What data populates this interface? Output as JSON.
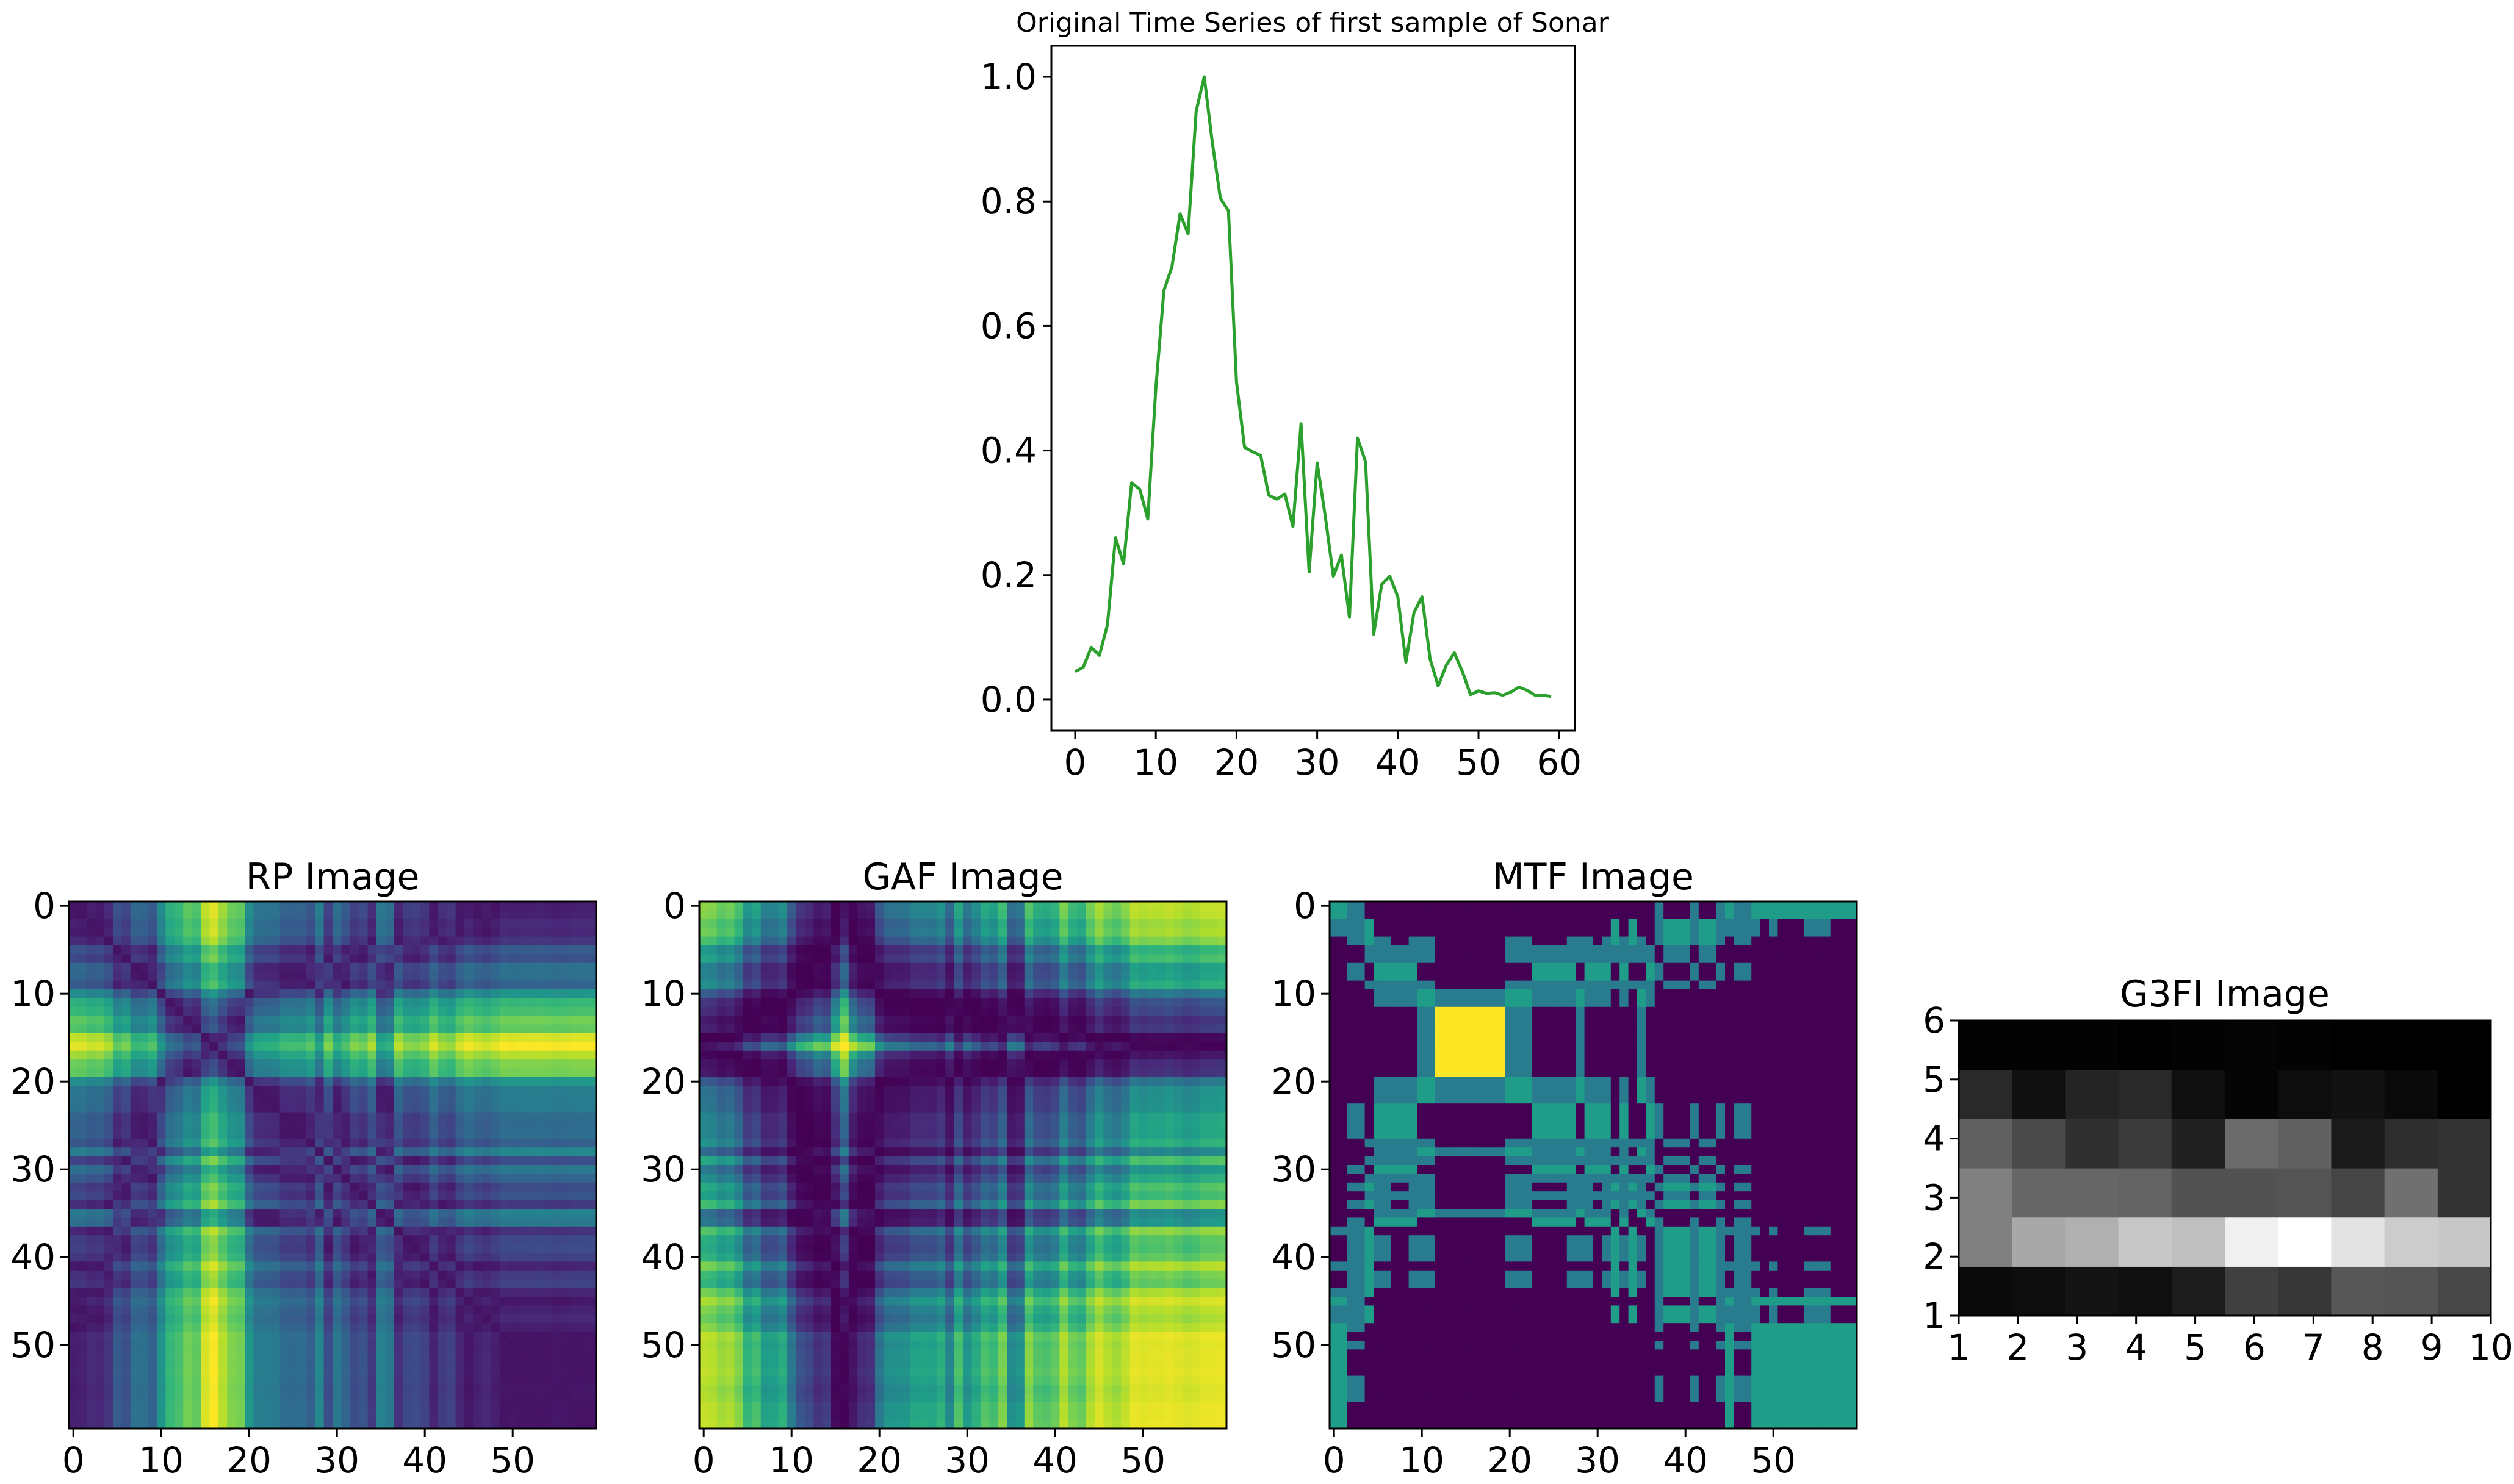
{
  "chart_data": [
    {
      "type": "line",
      "title": "Original Time Series of first sample of Sonar",
      "xlim": [
        -2.95,
        61.95
      ],
      "ylim": [
        -0.05,
        1.05
      ],
      "xticks": [
        0,
        10,
        20,
        30,
        40,
        50,
        60
      ],
      "yticks": [
        "0.0",
        "0.2",
        "0.4",
        "0.6",
        "0.8",
        "1.0"
      ],
      "line_color": "#2ca02c",
      "x": [
        0,
        1,
        2,
        3,
        4,
        5,
        6,
        7,
        8,
        9,
        10,
        11,
        12,
        13,
        14,
        15,
        16,
        17,
        18,
        19,
        20,
        21,
        22,
        23,
        24,
        25,
        26,
        27,
        28,
        29,
        30,
        31,
        32,
        33,
        34,
        35,
        36,
        37,
        38,
        39,
        40,
        41,
        42,
        43,
        44,
        45,
        46,
        47,
        48,
        49,
        50,
        51,
        52,
        53,
        54,
        55,
        56,
        57,
        58,
        59
      ],
      "y": [
        0.045,
        0.052,
        0.084,
        0.071,
        0.12,
        0.26,
        0.218,
        0.348,
        0.338,
        0.29,
        0.5,
        0.657,
        0.695,
        0.78,
        0.748,
        0.945,
        1.0,
        0.895,
        0.805,
        0.785,
        0.51,
        0.405,
        0.398,
        0.392,
        0.328,
        0.322,
        0.33,
        0.278,
        0.443,
        0.205,
        0.38,
        0.295,
        0.198,
        0.232,
        0.132,
        0.42,
        0.382,
        0.105,
        0.185,
        0.198,
        0.165,
        0.06,
        0.14,
        0.165,
        0.065,
        0.022,
        0.055,
        0.075,
        0.045,
        0.008,
        0.014,
        0.01,
        0.011,
        0.007,
        0.012,
        0.02,
        0.015,
        0.007,
        0.007,
        0.005
      ]
    },
    {
      "type": "heatmap",
      "title": "RP Image",
      "colormap": "viridis",
      "size": 60,
      "xticks": [
        0,
        10,
        20,
        30,
        40,
        50
      ],
      "yticks": [
        0,
        10,
        20,
        30,
        40,
        50
      ],
      "cell": "abs(y[i] - y[j])"
    },
    {
      "type": "heatmap",
      "title": "GAF Image",
      "colormap": "viridis",
      "size": 60,
      "xticks": [
        0,
        10,
        20,
        30,
        40,
        50
      ],
      "yticks": [
        0,
        10,
        20,
        30,
        40,
        50
      ],
      "cell": "cos(phi_i + phi_j), phi = arccos(2*y - 1)"
    },
    {
      "type": "heatmap",
      "title": "MTF Image",
      "colormap": "viridis",
      "size": 60,
      "xticks": [
        0,
        10,
        20,
        30,
        40,
        50
      ],
      "yticks": [
        0,
        10,
        20,
        30,
        40,
        50
      ],
      "cell": "Markov transition probability between quantile bins of y[i] and y[j]",
      "bright_block": {
        "rows": [
          12,
          19
        ],
        "cols": [
          12,
          19
        ]
      }
    },
    {
      "type": "heatmap",
      "title": "G3FI Image",
      "colormap": "gray",
      "rows": 6,
      "cols": 10,
      "xticks": [
        1,
        2,
        3,
        4,
        5,
        6,
        7,
        8,
        9,
        10
      ],
      "yticks": [
        1,
        2,
        3,
        4,
        5,
        6
      ],
      "values": [
        [
          0.04,
          0.05,
          0.08,
          0.06,
          0.11,
          0.25,
          0.21,
          0.34,
          0.33,
          0.28
        ],
        [
          0.5,
          0.66,
          0.69,
          0.78,
          0.75,
          0.94,
          1.0,
          0.89,
          0.8,
          0.78
        ],
        [
          0.5,
          0.4,
          0.4,
          0.39,
          0.32,
          0.32,
          0.33,
          0.27,
          0.44,
          0.2
        ],
        [
          0.38,
          0.29,
          0.19,
          0.23,
          0.13,
          0.42,
          0.38,
          0.1,
          0.18,
          0.2
        ],
        [
          0.16,
          0.06,
          0.14,
          0.16,
          0.06,
          0.02,
          0.05,
          0.07,
          0.04,
          0.0
        ],
        [
          0.01,
          0.01,
          0.01,
          0.0,
          0.01,
          0.02,
          0.01,
          0.0,
          0.0,
          0.0
        ]
      ]
    }
  ]
}
